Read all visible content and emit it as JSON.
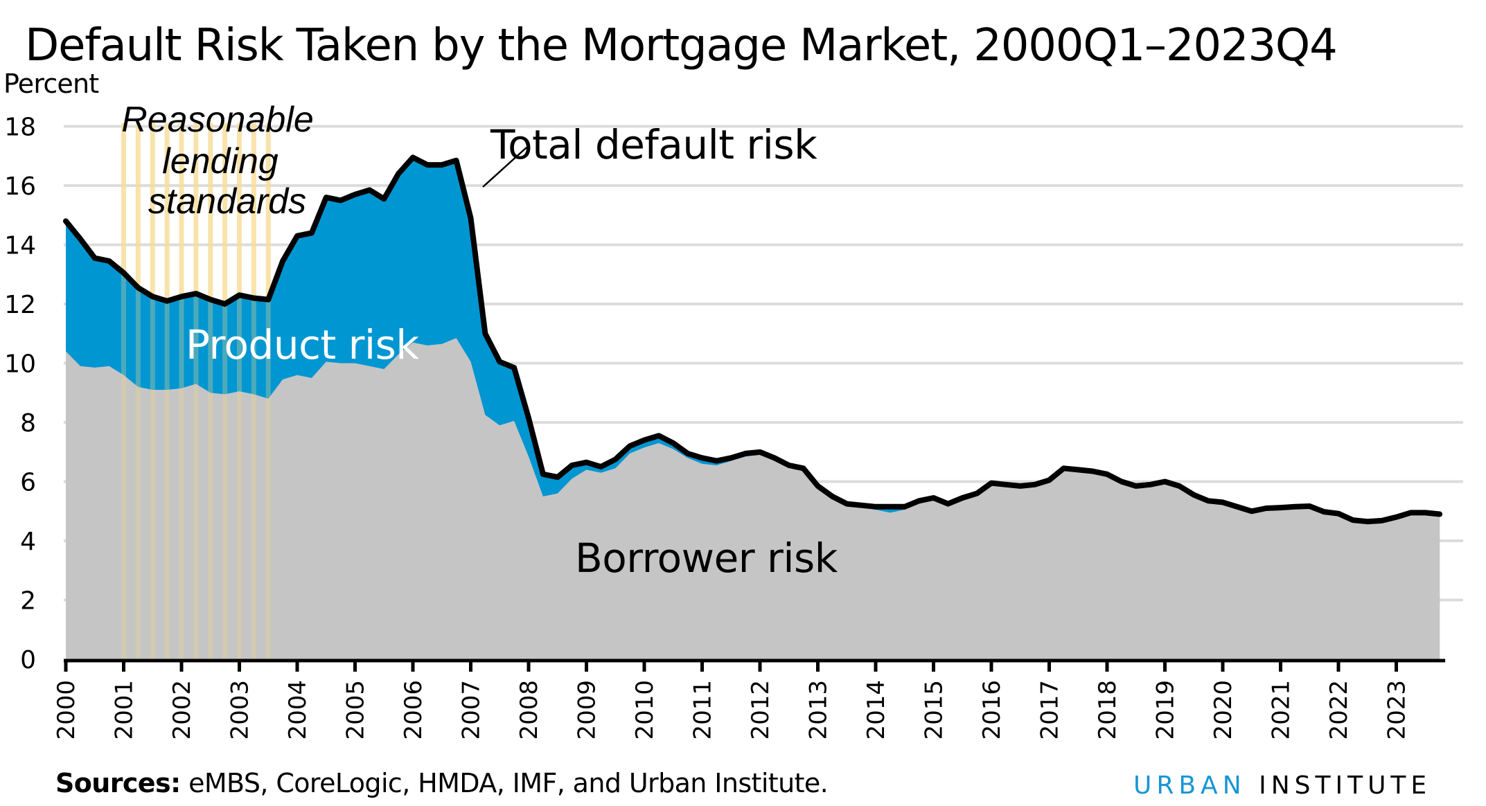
{
  "title": "Default Risk Taken by the Mortgage Market, 2000Q1–2023Q4",
  "y_axis_label": "Percent",
  "annotations": {
    "reasonable_lines": [
      "Reasonable",
      "lending",
      "standards"
    ],
    "total": "Total default risk",
    "product": "Product risk",
    "borrower": "Borrower risk"
  },
  "footer": {
    "sources_label": "Sources:",
    "sources_text": " eMBS, CoreLogic, HMDA, IMF, and Urban Institute.",
    "logo_urban": "URBAN",
    "logo_institute": "INSTITUTE"
  },
  "colors": {
    "borrower": "#c5c5c5",
    "product": "#0096d2",
    "total_line": "#000000",
    "grid": "#dcdcdc",
    "reasonable_band": "#fbe3a6",
    "logo_blue": "#1696d2"
  },
  "chart_data": {
    "type": "area",
    "title": "Default Risk Taken by the Mortgage Market, 2000Q1–2023Q4",
    "xlabel": "",
    "ylabel": "Percent",
    "ylim": [
      0,
      18
    ],
    "yticks": [
      0,
      2,
      4,
      6,
      8,
      10,
      12,
      14,
      16,
      18
    ],
    "xticks": [
      "2000",
      "2001",
      "2002",
      "2003",
      "2004",
      "2005",
      "2006",
      "2007",
      "2008",
      "2009",
      "2010",
      "2011",
      "2012",
      "2013",
      "2014",
      "2015",
      "2016",
      "2017",
      "2018",
      "2019",
      "2020",
      "2021",
      "2022",
      "2023"
    ],
    "grid": true,
    "frequency": "quarterly",
    "start": "2000Q1",
    "end": "2023Q4",
    "shaded_region": {
      "label": "Reasonable lending standards",
      "start": "2001Q1",
      "end": "2003Q3"
    },
    "series": [
      {
        "name": "Borrower risk",
        "kind": "stacked-area",
        "values": [
          10.4,
          9.9,
          9.85,
          9.9,
          9.6,
          9.2,
          9.1,
          9.1,
          9.15,
          9.3,
          9.0,
          8.95,
          9.05,
          8.95,
          8.8,
          9.45,
          9.6,
          9.5,
          10.05,
          10.0,
          10.0,
          9.9,
          9.8,
          10.3,
          10.7,
          10.6,
          10.65,
          10.85,
          10.05,
          8.25,
          7.9,
          8.05,
          6.85,
          5.5,
          5.6,
          6.1,
          6.4,
          6.3,
          6.45,
          6.95,
          7.15,
          7.3,
          7.1,
          6.8,
          6.6,
          6.55,
          6.7,
          6.85,
          6.9,
          6.7,
          6.5,
          6.4,
          5.8,
          5.45,
          5.2,
          5.15,
          5.05,
          4.95,
          5.05,
          5.3,
          5.43,
          5.23,
          5.43,
          5.58,
          5.93,
          5.88,
          5.83,
          5.88,
          6.03,
          6.43,
          6.38,
          6.33,
          6.23,
          5.98,
          5.83,
          5.88,
          5.98,
          5.83,
          5.53,
          5.33,
          5.28,
          5.13,
          4.98,
          5.08,
          5.1,
          5.13,
          5.15,
          4.96,
          4.9,
          4.68,
          4.63,
          4.66,
          4.78,
          4.93,
          4.93,
          4.88
        ]
      },
      {
        "name": "Total default risk",
        "kind": "line (borrower + product)",
        "values": [
          14.8,
          14.2,
          13.55,
          13.45,
          13.05,
          12.55,
          12.25,
          12.1,
          12.25,
          12.35,
          12.15,
          12.0,
          12.3,
          12.2,
          12.15,
          13.45,
          14.3,
          14.4,
          15.6,
          15.5,
          15.7,
          15.85,
          15.55,
          16.4,
          16.95,
          16.7,
          16.7,
          16.85,
          14.9,
          11.0,
          10.05,
          9.85,
          8.15,
          6.25,
          6.15,
          6.55,
          6.65,
          6.5,
          6.75,
          7.2,
          7.4,
          7.55,
          7.3,
          6.95,
          6.8,
          6.7,
          6.8,
          6.95,
          7.0,
          6.8,
          6.55,
          6.45,
          5.85,
          5.5,
          5.25,
          5.2,
          5.15,
          5.15,
          5.15,
          5.35,
          5.45,
          5.25,
          5.45,
          5.6,
          5.95,
          5.9,
          5.85,
          5.9,
          6.05,
          6.45,
          6.4,
          6.35,
          6.25,
          6.0,
          5.85,
          5.9,
          6.0,
          5.85,
          5.55,
          5.35,
          5.3,
          5.15,
          5.0,
          5.1,
          5.12,
          5.15,
          5.17,
          4.98,
          4.92,
          4.7,
          4.65,
          4.68,
          4.8,
          4.95,
          4.95,
          4.9
        ]
      }
    ],
    "derived": {
      "Product risk": "Total default risk minus Borrower risk"
    }
  }
}
